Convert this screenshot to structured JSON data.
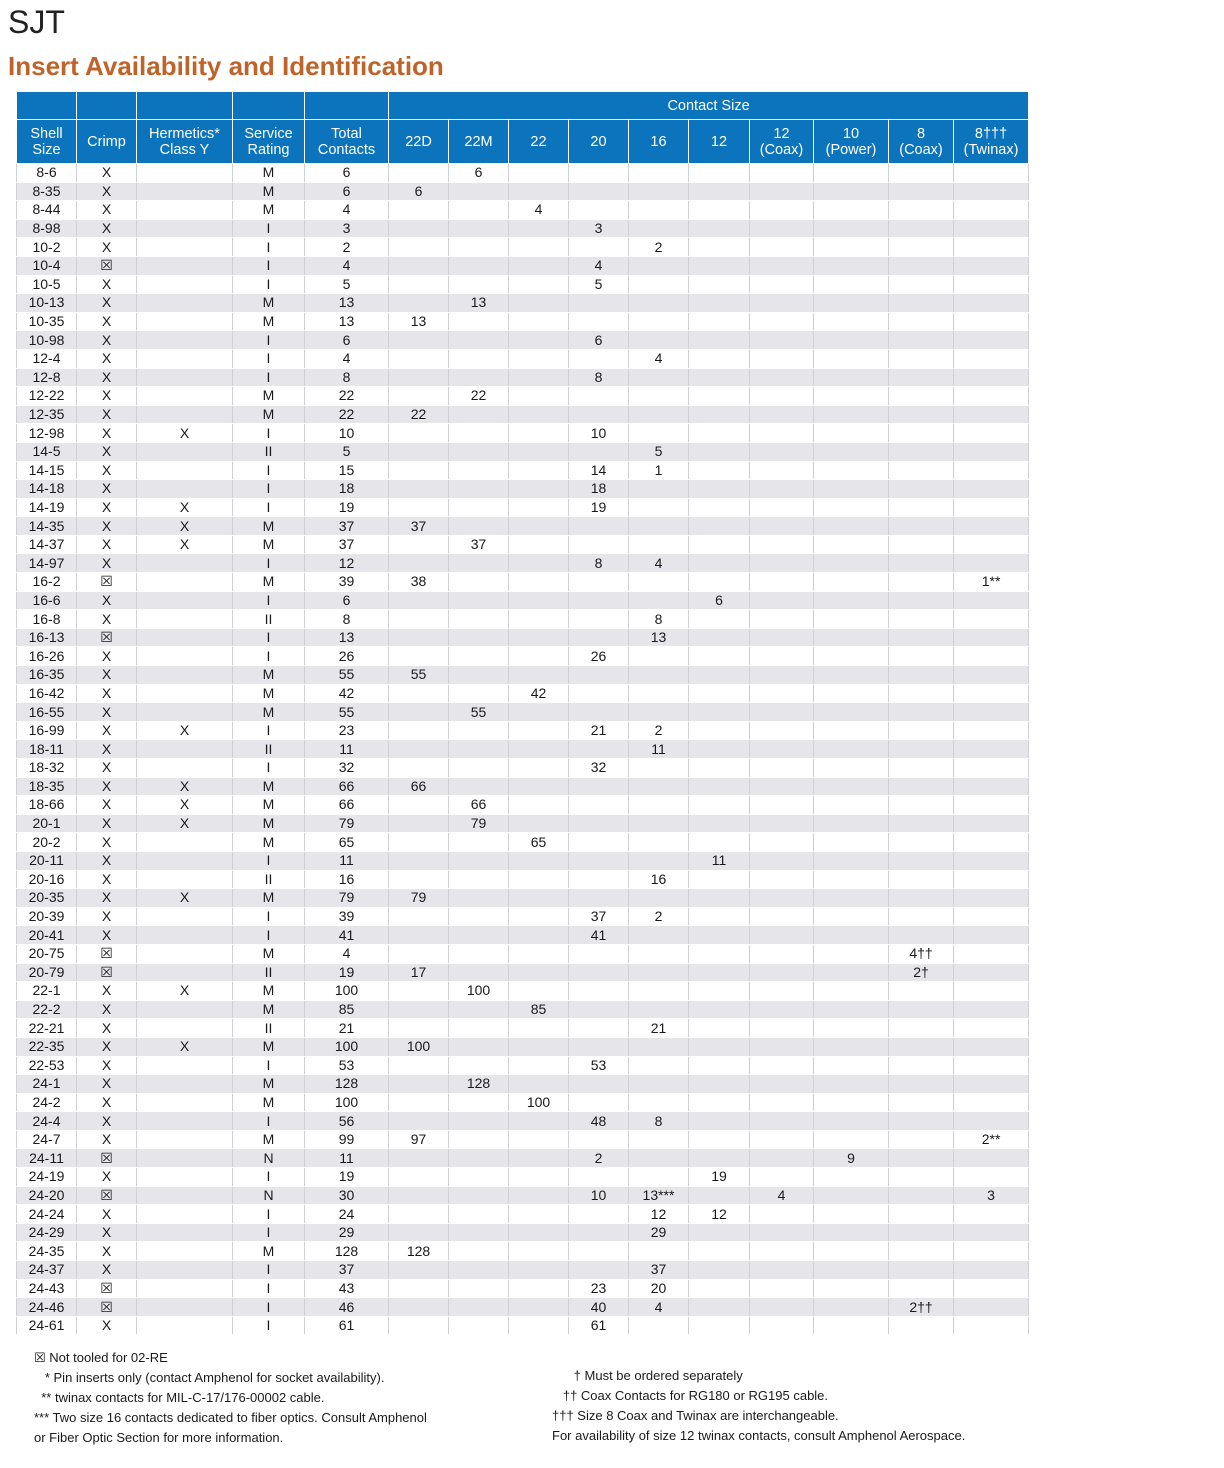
{
  "header": {
    "brand": "SJT",
    "subtitle": "Insert Availability and Identification"
  },
  "table": {
    "group_header": "Contact Size",
    "columns": [
      [
        "Shell",
        "Size"
      ],
      [
        "Crimp"
      ],
      [
        "Hermetics*",
        "Class Y"
      ],
      [
        "Service",
        "Rating"
      ],
      [
        "Total",
        "Contacts"
      ],
      [
        "22D"
      ],
      [
        "22M"
      ],
      [
        "22"
      ],
      [
        "20"
      ],
      [
        "16"
      ],
      [
        "12"
      ],
      [
        "12",
        "(Coax)"
      ],
      [
        "10",
        "(Power)"
      ],
      [
        "8",
        "(Coax)"
      ],
      [
        "8†††",
        "(Twinax)"
      ]
    ],
    "rows": [
      [
        "8-6",
        "X",
        "",
        "M",
        "6",
        "",
        "6",
        "",
        "",
        "",
        "",
        "",
        "",
        "",
        ""
      ],
      [
        "8-35",
        "X",
        "",
        "M",
        "6",
        "6",
        "",
        "",
        "",
        "",
        "",
        "",
        "",
        "",
        ""
      ],
      [
        "8-44",
        "X",
        "",
        "M",
        "4",
        "",
        "",
        "4",
        "",
        "",
        "",
        "",
        "",
        "",
        ""
      ],
      [
        "8-98",
        "X",
        "",
        "I",
        "3",
        "",
        "",
        "",
        "3",
        "",
        "",
        "",
        "",
        "",
        ""
      ],
      [
        "10-2",
        "X",
        "",
        "I",
        "2",
        "",
        "",
        "",
        "",
        "2",
        "",
        "",
        "",
        "",
        ""
      ],
      [
        "10-4",
        "☒",
        "",
        "I",
        "4",
        "",
        "",
        "",
        "4",
        "",
        "",
        "",
        "",
        "",
        ""
      ],
      [
        "10-5",
        "X",
        "",
        "I",
        "5",
        "",
        "",
        "",
        "5",
        "",
        "",
        "",
        "",
        "",
        ""
      ],
      [
        "10-13",
        "X",
        "",
        "M",
        "13",
        "",
        "13",
        "",
        "",
        "",
        "",
        "",
        "",
        "",
        ""
      ],
      [
        "10-35",
        "X",
        "",
        "M",
        "13",
        "13",
        "",
        "",
        "",
        "",
        "",
        "",
        "",
        "",
        ""
      ],
      [
        "10-98",
        "X",
        "",
        "I",
        "6",
        "",
        "",
        "",
        "6",
        "",
        "",
        "",
        "",
        "",
        ""
      ],
      [
        "12-4",
        "X",
        "",
        "I",
        "4",
        "",
        "",
        "",
        "",
        "4",
        "",
        "",
        "",
        "",
        ""
      ],
      [
        "12-8",
        "X",
        "",
        "I",
        "8",
        "",
        "",
        "",
        "8",
        "",
        "",
        "",
        "",
        "",
        ""
      ],
      [
        "12-22",
        "X",
        "",
        "M",
        "22",
        "",
        "22",
        "",
        "",
        "",
        "",
        "",
        "",
        "",
        ""
      ],
      [
        "12-35",
        "X",
        "",
        "M",
        "22",
        "22",
        "",
        "",
        "",
        "",
        "",
        "",
        "",
        "",
        ""
      ],
      [
        "12-98",
        "X",
        "X",
        "I",
        "10",
        "",
        "",
        "",
        "10",
        "",
        "",
        "",
        "",
        "",
        ""
      ],
      [
        "14-5",
        "X",
        "",
        "II",
        "5",
        "",
        "",
        "",
        "",
        "5",
        "",
        "",
        "",
        "",
        ""
      ],
      [
        "14-15",
        "X",
        "",
        "I",
        "15",
        "",
        "",
        "",
        "14",
        "1",
        "",
        "",
        "",
        "",
        ""
      ],
      [
        "14-18",
        "X",
        "",
        "I",
        "18",
        "",
        "",
        "",
        "18",
        "",
        "",
        "",
        "",
        "",
        ""
      ],
      [
        "14-19",
        "X",
        "X",
        "I",
        "19",
        "",
        "",
        "",
        "19",
        "",
        "",
        "",
        "",
        "",
        ""
      ],
      [
        "14-35",
        "X",
        "X",
        "M",
        "37",
        "37",
        "",
        "",
        "",
        "",
        "",
        "",
        "",
        "",
        ""
      ],
      [
        "14-37",
        "X",
        "X",
        "M",
        "37",
        "",
        "37",
        "",
        "",
        "",
        "",
        "",
        "",
        "",
        ""
      ],
      [
        "14-97",
        "X",
        "",
        "I",
        "12",
        "",
        "",
        "",
        "8",
        "4",
        "",
        "",
        "",
        "",
        ""
      ],
      [
        "16-2",
        "☒",
        "",
        "M",
        "39",
        "38",
        "",
        "",
        "",
        "",
        "",
        "",
        "",
        "",
        "1**"
      ],
      [
        "16-6",
        "X",
        "",
        "I",
        "6",
        "",
        "",
        "",
        "",
        "",
        "6",
        "",
        "",
        "",
        ""
      ],
      [
        "16-8",
        "X",
        "",
        "II",
        "8",
        "",
        "",
        "",
        "",
        "8",
        "",
        "",
        "",
        "",
        ""
      ],
      [
        "16-13",
        "☒",
        "",
        "I",
        "13",
        "",
        "",
        "",
        "",
        "13",
        "",
        "",
        "",
        "",
        ""
      ],
      [
        "16-26",
        "X",
        "",
        "I",
        "26",
        "",
        "",
        "",
        "26",
        "",
        "",
        "",
        "",
        "",
        ""
      ],
      [
        "16-35",
        "X",
        "",
        "M",
        "55",
        "55",
        "",
        "",
        "",
        "",
        "",
        "",
        "",
        "",
        ""
      ],
      [
        "16-42",
        "X",
        "",
        "M",
        "42",
        "",
        "",
        "42",
        "",
        "",
        "",
        "",
        "",
        "",
        ""
      ],
      [
        "16-55",
        "X",
        "",
        "M",
        "55",
        "",
        "55",
        "",
        "",
        "",
        "",
        "",
        "",
        "",
        ""
      ],
      [
        "16-99",
        "X",
        "X",
        "I",
        "23",
        "",
        "",
        "",
        "21",
        "2",
        "",
        "",
        "",
        "",
        ""
      ],
      [
        "18-11",
        "X",
        "",
        "II",
        "11",
        "",
        "",
        "",
        "",
        "11",
        "",
        "",
        "",
        "",
        ""
      ],
      [
        "18-32",
        "X",
        "",
        "I",
        "32",
        "",
        "",
        "",
        "32",
        "",
        "",
        "",
        "",
        "",
        ""
      ],
      [
        "18-35",
        "X",
        "X",
        "M",
        "66",
        "66",
        "",
        "",
        "",
        "",
        "",
        "",
        "",
        "",
        ""
      ],
      [
        "18-66",
        "X",
        "X",
        "M",
        "66",
        "",
        "66",
        "",
        "",
        "",
        "",
        "",
        "",
        "",
        ""
      ],
      [
        "20-1",
        "X",
        "X",
        "M",
        "79",
        "",
        "79",
        "",
        "",
        "",
        "",
        "",
        "",
        "",
        ""
      ],
      [
        "20-2",
        "X",
        "",
        "M",
        "65",
        "",
        "",
        "65",
        "",
        "",
        "",
        "",
        "",
        "",
        ""
      ],
      [
        "20-11",
        "X",
        "",
        "I",
        "11",
        "",
        "",
        "",
        "",
        "",
        "11",
        "",
        "",
        "",
        ""
      ],
      [
        "20-16",
        "X",
        "",
        "II",
        "16",
        "",
        "",
        "",
        "",
        "16",
        "",
        "",
        "",
        "",
        ""
      ],
      [
        "20-35",
        "X",
        "X",
        "M",
        "79",
        "79",
        "",
        "",
        "",
        "",
        "",
        "",
        "",
        "",
        ""
      ],
      [
        "20-39",
        "X",
        "",
        "I",
        "39",
        "",
        "",
        "",
        "37",
        "2",
        "",
        "",
        "",
        "",
        ""
      ],
      [
        "20-41",
        "X",
        "",
        "I",
        "41",
        "",
        "",
        "",
        "41",
        "",
        "",
        "",
        "",
        "",
        ""
      ],
      [
        "20-75",
        "☒",
        "",
        "M",
        "4",
        "",
        "",
        "",
        "",
        "",
        "",
        "",
        "",
        "4††",
        ""
      ],
      [
        "20-79",
        "☒",
        "",
        "II",
        "19",
        "17",
        "",
        "",
        "",
        "",
        "",
        "",
        "",
        "2†",
        ""
      ],
      [
        "22-1",
        "X",
        "X",
        "M",
        "100",
        "",
        "100",
        "",
        "",
        "",
        "",
        "",
        "",
        "",
        ""
      ],
      [
        "22-2",
        "X",
        "",
        "M",
        "85",
        "",
        "",
        "85",
        "",
        "",
        "",
        "",
        "",
        "",
        ""
      ],
      [
        "22-21",
        "X",
        "",
        "II",
        "21",
        "",
        "",
        "",
        "",
        "21",
        "",
        "",
        "",
        "",
        ""
      ],
      [
        "22-35",
        "X",
        "X",
        "M",
        "100",
        "100",
        "",
        "",
        "",
        "",
        "",
        "",
        "",
        "",
        ""
      ],
      [
        "22-53",
        "X",
        "",
        "I",
        "53",
        "",
        "",
        "",
        "53",
        "",
        "",
        "",
        "",
        "",
        ""
      ],
      [
        "24-1",
        "X",
        "",
        "M",
        "128",
        "",
        "128",
        "",
        "",
        "",
        "",
        "",
        "",
        "",
        ""
      ],
      [
        "24-2",
        "X",
        "",
        "M",
        "100",
        "",
        "",
        "100",
        "",
        "",
        "",
        "",
        "",
        "",
        ""
      ],
      [
        "24-4",
        "X",
        "",
        "I",
        "56",
        "",
        "",
        "",
        "48",
        "8",
        "",
        "",
        "",
        "",
        ""
      ],
      [
        "24-7",
        "X",
        "",
        "M",
        "99",
        "97",
        "",
        "",
        "",
        "",
        "",
        "",
        "",
        "",
        "2**"
      ],
      [
        "24-11",
        "☒",
        "",
        "N",
        "11",
        "",
        "",
        "",
        "2",
        "",
        "",
        "",
        "9",
        "",
        ""
      ],
      [
        "24-19",
        "X",
        "",
        "I",
        "19",
        "",
        "",
        "",
        "",
        "",
        "19",
        "",
        "",
        "",
        ""
      ],
      [
        "24-20",
        "☒",
        "",
        "N",
        "30",
        "",
        "",
        "",
        "10",
        "13***",
        "",
        "4",
        "",
        "",
        "3"
      ],
      [
        "24-24",
        "X",
        "",
        "I",
        "24",
        "",
        "",
        "",
        "",
        "12",
        "12",
        "",
        "",
        "",
        ""
      ],
      [
        "24-29",
        "X",
        "",
        "I",
        "29",
        "",
        "",
        "",
        "",
        "29",
        "",
        "",
        "",
        "",
        ""
      ],
      [
        "24-35",
        "X",
        "",
        "M",
        "128",
        "128",
        "",
        "",
        "",
        "",
        "",
        "",
        "",
        "",
        ""
      ],
      [
        "24-37",
        "X",
        "",
        "I",
        "37",
        "",
        "",
        "",
        "",
        "37",
        "",
        "",
        "",
        "",
        ""
      ],
      [
        "24-43",
        "☒",
        "",
        "I",
        "43",
        "",
        "",
        "",
        "23",
        "20",
        "",
        "",
        "",
        "",
        ""
      ],
      [
        "24-46",
        "☒",
        "",
        "I",
        "46",
        "",
        "",
        "",
        "40",
        "4",
        "",
        "",
        "",
        "2††",
        ""
      ],
      [
        "24-61",
        "X",
        "",
        "I",
        "61",
        "",
        "",
        "",
        "61",
        "",
        "",
        "",
        "",
        "",
        ""
      ]
    ]
  },
  "notes_left": [
    "☒ Not tooled for 02-RE",
    "   * Pin inserts only (contact Amphenol for socket availability).",
    "  ** twinax contacts for MIL-C-17/176-00002 cable.",
    "*** Two size 16 contacts dedicated to fiber optics. Consult Amphenol",
    "or Fiber Optic Section for more information."
  ],
  "notes_right": [
    "      † Must be ordered separately",
    "   †† Coax Contacts for RG180 or RG195 cable.",
    "††† Size 8 Coax and Twinax are interchangeable.",
    "For availability of size 12 twinax contacts, consult Amphenol Aerospace."
  ]
}
